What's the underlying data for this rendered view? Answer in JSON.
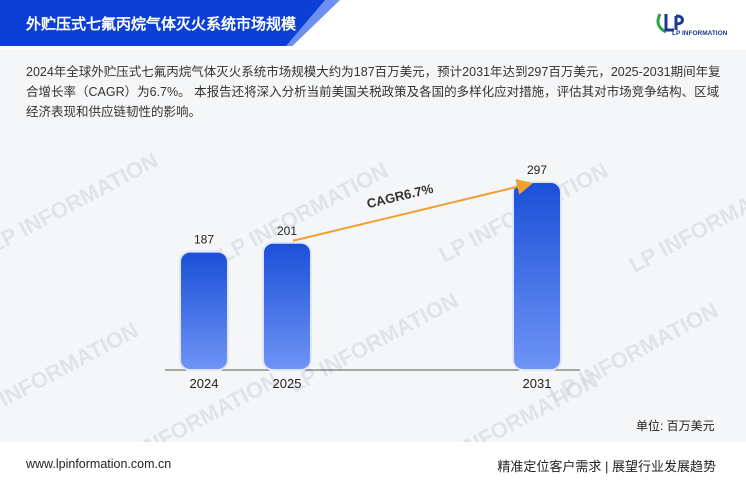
{
  "header": {
    "title": "外贮压式七氟丙烷气体灭火系统市场规模",
    "logo_text": "LP INFORMATION",
    "brand_color": "#0b3fd6"
  },
  "description": "2024年全球外贮压式七氟丙烷气体灭火系统市场规模大约为187百万美元，预计2031年达到297百万美元，2025-2031期间年复合增长率（CAGR）为6.7%。 本报告还将深入分析当前美国关税政策及各国的多样化应对措施，评估其对市场竞争结构、区域经济表现和供应链韧性的影响。",
  "watermark_text": "LP INFORMATION",
  "chart_data": {
    "type": "bar",
    "categories": [
      "2024",
      "2025",
      "2031"
    ],
    "values": [
      187,
      201,
      297
    ],
    "data_labels": [
      "187",
      "201",
      "297"
    ],
    "annotation": "CAGR6.7%",
    "ylim": [
      0,
      320
    ],
    "grid": false,
    "bar_color_top": "#1a4fd8",
    "bar_color_bottom": "#6f94f5",
    "arrow_color": "#f0a030"
  },
  "unit_label": "单位: 百万美元",
  "footer": {
    "url": "www.lpinformation.com.cn",
    "slogan": "精准定位客户需求 | 展望行业发展趋势"
  }
}
